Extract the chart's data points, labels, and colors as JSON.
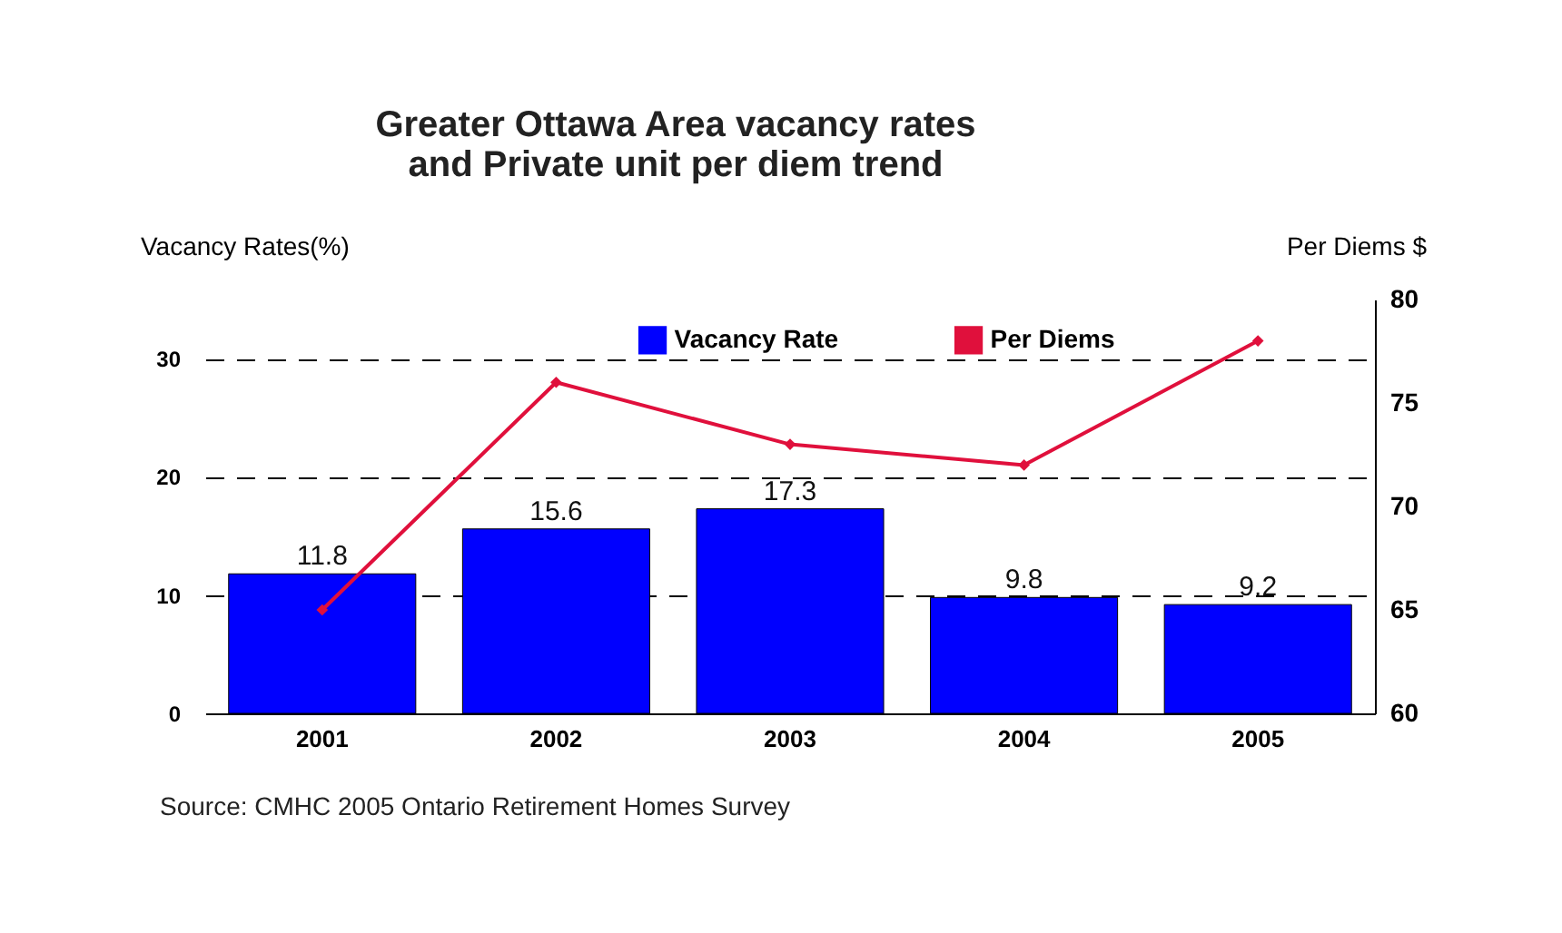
{
  "chart_data": {
    "type": "bar",
    "title": "Greater Ottawa Area vacancy rates\nand Private unit per diem trend",
    "ylabel": "Vacancy Rates(%)",
    "y2label": "Per Diems $",
    "categories": [
      "2001",
      "2002",
      "2003",
      "2004",
      "2005"
    ],
    "series": [
      {
        "name": "Vacancy Rate",
        "type": "bar",
        "color": "#0000ff",
        "values": [
          11.8,
          15.6,
          17.3,
          9.8,
          9.2
        ],
        "value_labels": [
          "11.8",
          "15.6",
          "17.3",
          "9.8",
          "9.2"
        ]
      },
      {
        "name": "Per Diems",
        "type": "line",
        "axis": "y2",
        "color": "#e0103c",
        "values": [
          65,
          76,
          73,
          72,
          78
        ]
      }
    ],
    "ylim": [
      0,
      35
    ],
    "yticks": [
      0,
      10,
      20,
      30
    ],
    "y2lim": [
      60,
      80
    ],
    "y2ticks": [
      60,
      65,
      70,
      75,
      80
    ],
    "grid": "y",
    "legend": "top",
    "marker": "diamond",
    "line_style": "solid",
    "annotations": [
      "Source: CMHC 2005 Ontario Retirement Homes Survey"
    ]
  }
}
